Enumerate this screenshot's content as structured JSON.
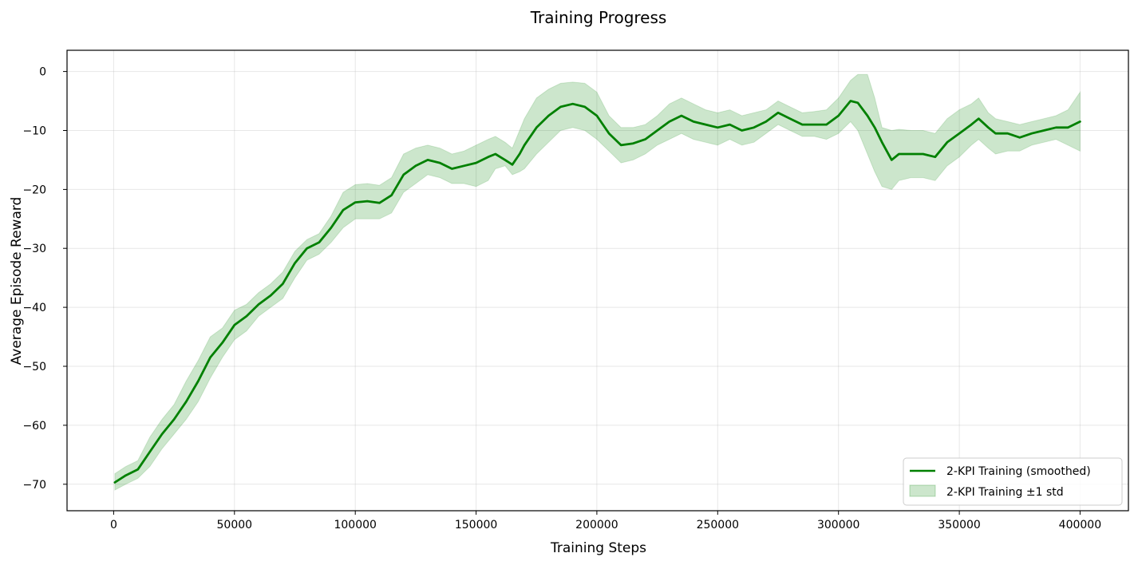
{
  "chart_data": {
    "type": "line",
    "title": "Training Progress",
    "xlabel": "Training Steps",
    "ylabel": "Average Episode Reward",
    "xlim": [
      -19300,
      420000
    ],
    "ylim": [
      -74.5,
      3.6
    ],
    "x_ticks": [
      0,
      50000,
      100000,
      150000,
      200000,
      250000,
      300000,
      350000,
      400000
    ],
    "x_tick_labels": [
      "0",
      "50000",
      "100000",
      "150000",
      "200000",
      "250000",
      "300000",
      "350000",
      "400000"
    ],
    "y_ticks": [
      0,
      -10,
      -20,
      -30,
      -40,
      -50,
      -60,
      -70
    ],
    "y_tick_labels": [
      "0",
      "−10",
      "−20",
      "−30",
      "−40",
      "−50",
      "−60",
      "−70"
    ],
    "grid": true,
    "legend_position": "bottom-right",
    "colors": {
      "line": "#008000",
      "band": "#008000",
      "band_opacity": 0.2
    },
    "series": [
      {
        "name": "2-KPI Training (smoothed)",
        "kind": "line",
        "x": [
          500,
          5000,
          10000,
          15000,
          20000,
          25000,
          30000,
          35000,
          40000,
          45000,
          50000,
          55000,
          60000,
          65000,
          70000,
          75000,
          80000,
          85000,
          90000,
          95000,
          100000,
          105000,
          110000,
          115000,
          120000,
          125000,
          130000,
          135000,
          140000,
          145000,
          150000,
          155000,
          158000,
          162000,
          165000,
          168000,
          170000,
          175000,
          180000,
          185000,
          190000,
          195000,
          200000,
          205000,
          210000,
          215000,
          220000,
          225000,
          230000,
          235000,
          240000,
          245000,
          250000,
          255000,
          260000,
          265000,
          270000,
          275000,
          280000,
          285000,
          290000,
          295000,
          300000,
          305000,
          308000,
          312000,
          315000,
          318000,
          322000,
          325000,
          330000,
          335000,
          340000,
          345000,
          350000,
          355000,
          358000,
          362000,
          365000,
          370000,
          375000,
          380000,
          385000,
          390000,
          395000,
          400000
        ],
        "y": [
          -69.7,
          -68.5,
          -67.5,
          -64.5,
          -61.5,
          -59.0,
          -56.0,
          -52.5,
          -48.5,
          -46.0,
          -43.0,
          -41.5,
          -39.5,
          -38.0,
          -36.0,
          -32.5,
          -30.0,
          -29.0,
          -26.5,
          -23.5,
          -22.2,
          -22.0,
          -22.3,
          -21.0,
          -17.5,
          -16.0,
          -15.0,
          -15.5,
          -16.5,
          -16.0,
          -15.5,
          -14.5,
          -14.0,
          -15.0,
          -15.8,
          -14.0,
          -12.5,
          -9.5,
          -7.5,
          -6.0,
          -5.5,
          -6.0,
          -7.5,
          -10.5,
          -12.5,
          -12.2,
          -11.5,
          -10.0,
          -8.5,
          -7.5,
          -8.5,
          -9.0,
          -9.5,
          -9.0,
          -10.0,
          -9.5,
          -8.5,
          -7.0,
          -8.0,
          -9.0,
          -9.0,
          -9.0,
          -7.5,
          -5.0,
          -5.3,
          -7.5,
          -9.5,
          -12.0,
          -15.0,
          -14.0,
          -14.0,
          -14.0,
          -14.5,
          -12.0,
          -10.5,
          -9.0,
          -8.0,
          -9.5,
          -10.5,
          -10.5,
          -11.2,
          -10.5,
          -10.0,
          -9.5,
          -9.5,
          -8.5
        ]
      },
      {
        "name": "2-KPI Training ±1 std",
        "kind": "band",
        "x": [
          500,
          5000,
          10000,
          15000,
          20000,
          25000,
          30000,
          35000,
          40000,
          45000,
          50000,
          55000,
          60000,
          65000,
          70000,
          75000,
          80000,
          85000,
          90000,
          95000,
          100000,
          105000,
          110000,
          115000,
          120000,
          125000,
          130000,
          135000,
          140000,
          145000,
          150000,
          155000,
          158000,
          162000,
          165000,
          168000,
          170000,
          175000,
          180000,
          185000,
          190000,
          195000,
          200000,
          205000,
          210000,
          215000,
          220000,
          225000,
          230000,
          235000,
          240000,
          245000,
          250000,
          255000,
          260000,
          265000,
          270000,
          275000,
          280000,
          285000,
          290000,
          295000,
          300000,
          305000,
          308000,
          312000,
          315000,
          318000,
          322000,
          325000,
          330000,
          335000,
          340000,
          345000,
          350000,
          355000,
          358000,
          362000,
          365000,
          370000,
          375000,
          380000,
          385000,
          390000,
          395000,
          400000
        ],
        "upper": [
          -68.2,
          -67.0,
          -66.0,
          -62.0,
          -59.0,
          -56.5,
          -52.5,
          -49.0,
          -45.0,
          -43.5,
          -40.5,
          -39.5,
          -37.5,
          -36.0,
          -34.0,
          -30.5,
          -28.5,
          -27.5,
          -24.5,
          -20.5,
          -19.2,
          -19.0,
          -19.3,
          -18.0,
          -14.0,
          -13.0,
          -12.5,
          -13.0,
          -14.0,
          -13.5,
          -12.5,
          -11.5,
          -11.0,
          -12.0,
          -13.0,
          -10.0,
          -8.0,
          -4.5,
          -3.0,
          -2.0,
          -1.8,
          -2.0,
          -3.5,
          -7.5,
          -9.5,
          -9.5,
          -9.0,
          -7.5,
          -5.5,
          -4.5,
          -5.5,
          -6.5,
          -7.0,
          -6.5,
          -7.5,
          -7.0,
          -6.5,
          -5.0,
          -6.0,
          -7.0,
          -6.8,
          -6.5,
          -4.5,
          -1.5,
          -0.5,
          -0.5,
          -4.5,
          -9.5,
          -10.0,
          -9.8,
          -10.0,
          -10.0,
          -10.5,
          -8.0,
          -6.5,
          -5.5,
          -4.5,
          -7.0,
          -8.0,
          -8.5,
          -9.0,
          -8.5,
          -8.0,
          -7.5,
          -6.5,
          -3.5
        ],
        "lower": [
          -71.0,
          -70.0,
          -69.0,
          -67.0,
          -64.0,
          -61.5,
          -59.0,
          -56.0,
          -52.0,
          -48.5,
          -45.5,
          -44.0,
          -41.5,
          -40.0,
          -38.5,
          -35.0,
          -32.0,
          -31.0,
          -29.0,
          -26.5,
          -25.0,
          -25.0,
          -25.0,
          -24.0,
          -20.5,
          -19.0,
          -17.5,
          -18.0,
          -19.0,
          -19.0,
          -19.5,
          -18.5,
          -16.5,
          -16.0,
          -17.5,
          -17.0,
          -16.5,
          -14.0,
          -12.0,
          -10.0,
          -9.5,
          -10.0,
          -11.5,
          -13.5,
          -15.5,
          -15.0,
          -14.0,
          -12.5,
          -11.5,
          -10.5,
          -11.5,
          -12.0,
          -12.5,
          -11.5,
          -12.5,
          -12.0,
          -10.5,
          -9.0,
          -10.0,
          -11.0,
          -11.0,
          -11.5,
          -10.5,
          -8.5,
          -10.0,
          -14.0,
          -17.0,
          -19.5,
          -20.0,
          -18.5,
          -18.0,
          -18.0,
          -18.5,
          -16.0,
          -14.5,
          -12.5,
          -11.5,
          -13.0,
          -14.0,
          -13.5,
          -13.5,
          -12.5,
          -12.0,
          -11.5,
          -12.5,
          -13.5
        ]
      }
    ]
  }
}
